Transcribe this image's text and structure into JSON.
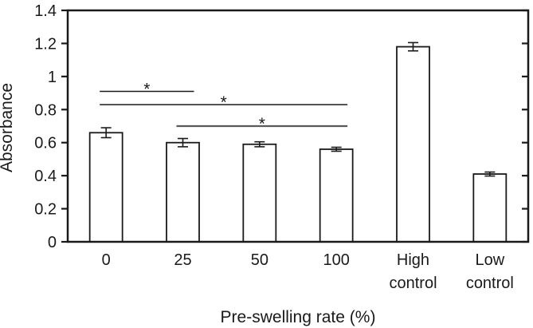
{
  "figure": {
    "background": "#ffffff",
    "ink": "#1a1a1a"
  },
  "chart_data": {
    "type": "bar",
    "title": "",
    "xlabel": "Pre-swelling rate (%)",
    "ylabel": "Absorbance",
    "categories": [
      "0",
      "25",
      "50",
      "100",
      "High\ncontrol",
      "Low\ncontrol"
    ],
    "values": [
      0.66,
      0.6,
      0.59,
      0.56,
      1.18,
      0.41
    ],
    "errors": [
      0.03,
      0.025,
      0.015,
      0.012,
      0.025,
      0.012
    ],
    "ylim": [
      0,
      1.4
    ],
    "yticks": [
      0,
      0.2,
      0.4,
      0.6,
      0.8,
      1,
      1.2,
      1.4
    ],
    "ytick_labels": [
      "0",
      "0.2",
      "0.4",
      "0.6",
      "0.8",
      "1",
      "1.2",
      "1.4"
    ],
    "grid": false,
    "legend": null,
    "bar_fill": "#ffffff",
    "bar_stroke": "#1a1a1a",
    "significance_markers": [
      {
        "from": 0,
        "to": 1,
        "y": 0.91,
        "label": "*",
        "color": "#1a1a1a",
        "thickness": 1.4
      },
      {
        "from": 0,
        "to": 3,
        "y": 0.83,
        "label": "*",
        "color": "#1a1a1a",
        "thickness": 1.5
      },
      {
        "from": 1,
        "to": 3,
        "y": 0.7,
        "label": "*",
        "color": "#5a5a5a",
        "thickness": 2.2
      }
    ]
  }
}
